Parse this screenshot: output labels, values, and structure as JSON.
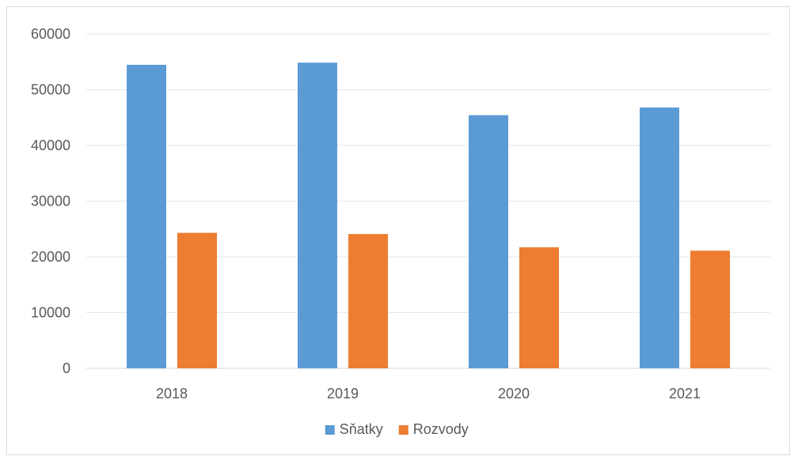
{
  "chart_data": {
    "type": "bar",
    "title": "",
    "xlabel": "",
    "ylabel": "",
    "categories": [
      "2018",
      "2019",
      "2020",
      "2021"
    ],
    "series": [
      {
        "name": "Sňatky",
        "color": "#5b9bd5",
        "values": [
          54470,
          54860,
          45430,
          46800
        ]
      },
      {
        "name": "Rozvody",
        "color": "#ed7d31",
        "values": [
          24310,
          24100,
          21730,
          21110
        ]
      }
    ],
    "ylim": [
      0,
      60000
    ],
    "yticks": [
      0,
      10000,
      20000,
      30000,
      40000,
      50000,
      60000
    ],
    "grid": true,
    "legend_position": "bottom"
  }
}
